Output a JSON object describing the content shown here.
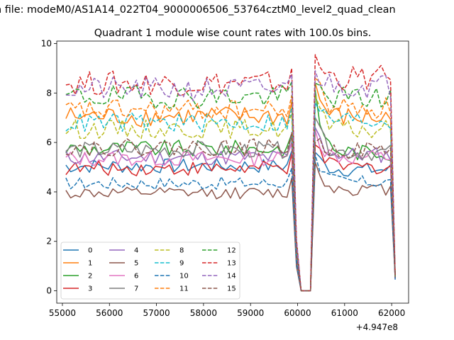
{
  "figure": {
    "suptitle": "n file: modeM0/AS1A14_022T04_9000006506_53764cztM0_level2_quad_clean",
    "offset_label": "+4.947e8"
  },
  "chart_data": {
    "type": "line",
    "title": "Quadrant 1 module wise count rates with 100.0s bins.",
    "xlabel": "",
    "ylabel": "",
    "x_offset": 494700000,
    "xlim": [
      54880,
      62360
    ],
    "ylim": [
      -0.5,
      10.1
    ],
    "xticks": [
      55000,
      56000,
      57000,
      58000,
      59000,
      60000,
      61000,
      62000
    ],
    "yticks": [
      0,
      2,
      4,
      6,
      8,
      10
    ],
    "grid": false,
    "legend": {
      "placement": "lower-left",
      "ncol": 4
    },
    "x": [
      55075,
      55175,
      55275,
      55375,
      55475,
      55575,
      55675,
      55775,
      55875,
      55975,
      56075,
      56175,
      56275,
      56375,
      56475,
      56575,
      56675,
      56775,
      56875,
      56975,
      57075,
      57175,
      57275,
      57375,
      57475,
      57575,
      57675,
      57775,
      57875,
      57975,
      58075,
      58175,
      58275,
      58375,
      58475,
      58575,
      58675,
      58775,
      58875,
      58975,
      59075,
      59175,
      59275,
      59375,
      59475,
      59575,
      59675,
      59775,
      59875,
      59975,
      60075,
      60175,
      60275,
      60375,
      60475,
      60575,
      60675,
      60775,
      60875,
      60975,
      61075,
      61175,
      61275,
      61375,
      61475,
      61575,
      61675,
      61775,
      61875,
      61975,
      62075
    ],
    "gap": {
      "from": 59875,
      "low_x": [
        59975,
        60075,
        60175,
        60275
      ],
      "low_y": [
        1.6,
        0.0,
        0.0,
        0.0
      ],
      "to": 60375,
      "end_x": 62075
    },
    "series": [
      {
        "name": "0",
        "color": "#1f77b4",
        "dash": "solid",
        "level": 5.05,
        "peak": 5.6,
        "tail": 4.9,
        "end": 0.45
      },
      {
        "name": "1",
        "color": "#ff7f0e",
        "dash": "solid",
        "level": 7.05,
        "peak": 8.4,
        "tail": 7.0,
        "end": 0.6
      },
      {
        "name": "2",
        "color": "#2ca02c",
        "dash": "solid",
        "level": 5.75,
        "peak": 8.1,
        "tail": 5.6,
        "end": 0.55
      },
      {
        "name": "3",
        "color": "#d62728",
        "dash": "solid",
        "level": 4.95,
        "peak": 5.9,
        "tail": 5.0,
        "end": 0.5
      },
      {
        "name": "4",
        "color": "#9467bd",
        "dash": "solid",
        "level": 5.4,
        "peak": 6.6,
        "tail": 5.5,
        "end": 0.5
      },
      {
        "name": "5",
        "color": "#8c564b",
        "dash": "solid",
        "level": 3.95,
        "peak": 5.2,
        "tail": 4.1,
        "end": 0.5
      },
      {
        "name": "6",
        "color": "#e377c2",
        "dash": "solid",
        "level": 5.35,
        "peak": 6.5,
        "tail": 5.4,
        "end": 0.5
      },
      {
        "name": "7",
        "color": "#7f7f7f",
        "dash": "solid",
        "level": 5.7,
        "peak": 7.0,
        "tail": 5.6,
        "end": 0.55
      },
      {
        "name": "8",
        "color": "#bcbd22",
        "dash": "dashed",
        "level": 6.55,
        "peak": 7.9,
        "tail": 6.5,
        "end": 0.55
      },
      {
        "name": "9",
        "color": "#17becf",
        "dash": "dashed",
        "level": 6.8,
        "peak": 7.6,
        "tail": 6.9,
        "end": 0.55
      },
      {
        "name": "10",
        "color": "#1f77b4",
        "dash": "dashed",
        "level": 4.35,
        "peak": 5.5,
        "tail": 4.4,
        "end": 0.5
      },
      {
        "name": "11",
        "color": "#ff7f0e",
        "dash": "dashed",
        "level": 7.3,
        "peak": 8.6,
        "tail": 7.4,
        "end": 0.6
      },
      {
        "name": "12",
        "color": "#2ca02c",
        "dash": "dashed",
        "level": 7.85,
        "peak": 8.4,
        "tail": 7.8,
        "end": 0.6
      },
      {
        "name": "13",
        "color": "#d62728",
        "dash": "dashed",
        "level": 8.4,
        "peak": 9.55,
        "tail": 8.6,
        "end": 0.65
      },
      {
        "name": "14",
        "color": "#9467bd",
        "dash": "dashed",
        "level": 8.15,
        "peak": 8.9,
        "tail": 8.3,
        "end": 0.6
      },
      {
        "name": "15",
        "color": "#8c564b",
        "dash": "dashed",
        "level": 5.8,
        "peak": 6.0,
        "tail": 5.7,
        "end": 0.55
      }
    ]
  }
}
